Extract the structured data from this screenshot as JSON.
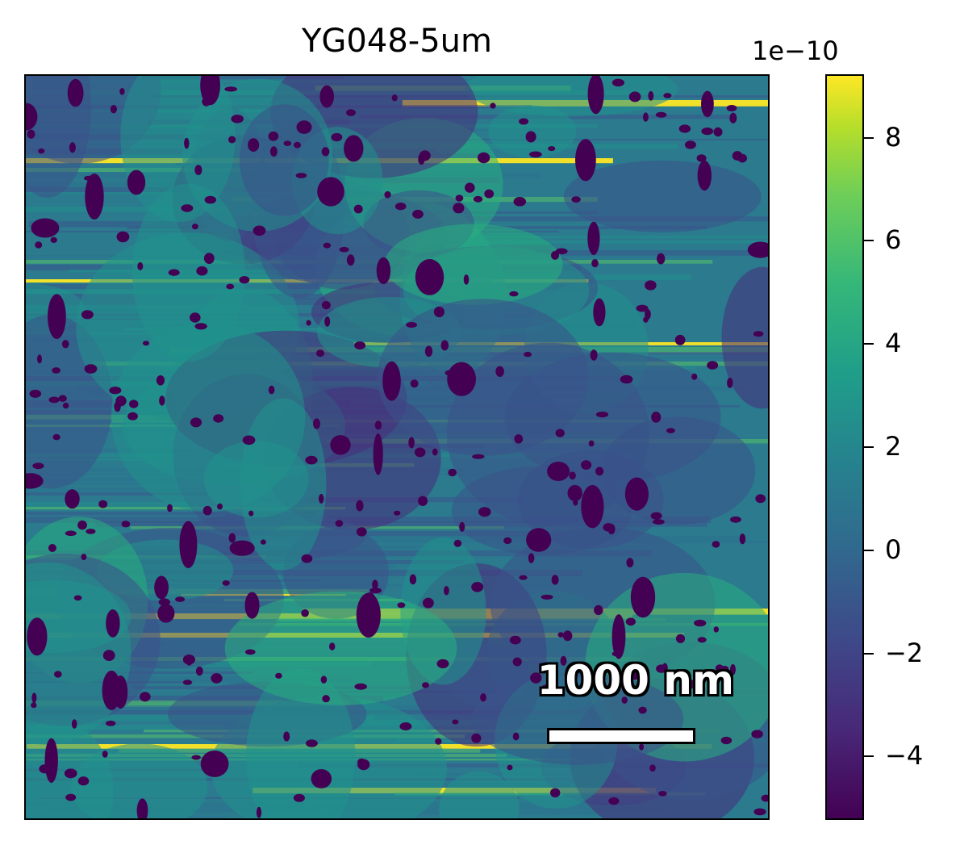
{
  "chart_data": {
    "type": "heatmap",
    "title": "YG048-5um",
    "colormap": "viridis",
    "colorbar": {
      "exponent_label": "1e−10",
      "vmin": -5.2,
      "vmax": 9.2,
      "ticks": [
        8,
        6,
        4,
        2,
        0,
        -2,
        -4
      ],
      "tick_labels": [
        "8",
        "6",
        "4",
        "2",
        "0",
        "−2",
        "−4"
      ]
    },
    "scale_bar": {
      "label": "1000 nm"
    },
    "axes_ticks_visible": false,
    "grid": false
  }
}
